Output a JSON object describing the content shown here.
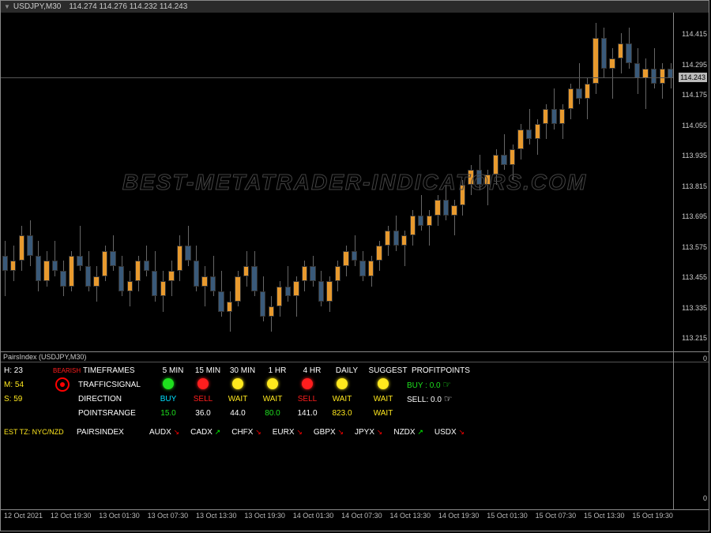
{
  "title": {
    "symbol": "USDJPY,M30",
    "ohlc": "114.274 114.276 114.232 114.243"
  },
  "chart": {
    "background": "#000000",
    "ylim": [
      113.16,
      114.5
    ],
    "yticks": [
      114.415,
      114.295,
      114.243,
      114.175,
      114.055,
      113.935,
      113.815,
      113.695,
      113.575,
      113.455,
      113.335,
      113.215
    ],
    "current_price": 114.243,
    "bar_color_up": "#e89a2e",
    "bar_color_dn": "#3a5a7a",
    "candles": [
      {
        "o": 113.54,
        "h": 113.6,
        "l": 113.38,
        "c": 113.48
      },
      {
        "o": 113.48,
        "h": 113.58,
        "l": 113.44,
        "c": 113.52
      },
      {
        "o": 113.52,
        "h": 113.66,
        "l": 113.48,
        "c": 113.62
      },
      {
        "o": 113.62,
        "h": 113.68,
        "l": 113.5,
        "c": 113.54
      },
      {
        "o": 113.54,
        "h": 113.6,
        "l": 113.4,
        "c": 113.44
      },
      {
        "o": 113.44,
        "h": 113.56,
        "l": 113.42,
        "c": 113.52
      },
      {
        "o": 113.52,
        "h": 113.6,
        "l": 113.46,
        "c": 113.48
      },
      {
        "o": 113.48,
        "h": 113.52,
        "l": 113.38,
        "c": 113.42
      },
      {
        "o": 113.42,
        "h": 113.56,
        "l": 113.4,
        "c": 113.54
      },
      {
        "o": 113.54,
        "h": 113.66,
        "l": 113.48,
        "c": 113.5
      },
      {
        "o": 113.5,
        "h": 113.56,
        "l": 113.4,
        "c": 113.42
      },
      {
        "o": 113.42,
        "h": 113.5,
        "l": 113.36,
        "c": 113.46
      },
      {
        "o": 113.46,
        "h": 113.58,
        "l": 113.44,
        "c": 113.56
      },
      {
        "o": 113.56,
        "h": 113.62,
        "l": 113.48,
        "c": 113.5
      },
      {
        "o": 113.5,
        "h": 113.54,
        "l": 113.38,
        "c": 113.4
      },
      {
        "o": 113.4,
        "h": 113.48,
        "l": 113.34,
        "c": 113.44
      },
      {
        "o": 113.44,
        "h": 113.54,
        "l": 113.4,
        "c": 113.52
      },
      {
        "o": 113.52,
        "h": 113.58,
        "l": 113.46,
        "c": 113.48
      },
      {
        "o": 113.48,
        "h": 113.56,
        "l": 113.36,
        "c": 113.38
      },
      {
        "o": 113.38,
        "h": 113.48,
        "l": 113.32,
        "c": 113.44
      },
      {
        "o": 113.44,
        "h": 113.52,
        "l": 113.38,
        "c": 113.48
      },
      {
        "o": 113.48,
        "h": 113.62,
        "l": 113.44,
        "c": 113.58
      },
      {
        "o": 113.58,
        "h": 113.66,
        "l": 113.5,
        "c": 113.52
      },
      {
        "o": 113.52,
        "h": 113.58,
        "l": 113.4,
        "c": 113.42
      },
      {
        "o": 113.42,
        "h": 113.5,
        "l": 113.34,
        "c": 113.46
      },
      {
        "o": 113.46,
        "h": 113.54,
        "l": 113.38,
        "c": 113.4
      },
      {
        "o": 113.4,
        "h": 113.48,
        "l": 113.3,
        "c": 113.32
      },
      {
        "o": 113.32,
        "h": 113.4,
        "l": 113.24,
        "c": 113.36
      },
      {
        "o": 113.36,
        "h": 113.48,
        "l": 113.34,
        "c": 113.46
      },
      {
        "o": 113.46,
        "h": 113.56,
        "l": 113.42,
        "c": 113.5
      },
      {
        "o": 113.5,
        "h": 113.56,
        "l": 113.38,
        "c": 113.4
      },
      {
        "o": 113.4,
        "h": 113.46,
        "l": 113.28,
        "c": 113.3
      },
      {
        "o": 113.3,
        "h": 113.38,
        "l": 113.24,
        "c": 113.34
      },
      {
        "o": 113.34,
        "h": 113.44,
        "l": 113.3,
        "c": 113.42
      },
      {
        "o": 113.42,
        "h": 113.5,
        "l": 113.36,
        "c": 113.38
      },
      {
        "o": 113.38,
        "h": 113.46,
        "l": 113.3,
        "c": 113.44
      },
      {
        "o": 113.44,
        "h": 113.52,
        "l": 113.4,
        "c": 113.5
      },
      {
        "o": 113.5,
        "h": 113.54,
        "l": 113.42,
        "c": 113.44
      },
      {
        "o": 113.44,
        "h": 113.48,
        "l": 113.34,
        "c": 113.36
      },
      {
        "o": 113.36,
        "h": 113.46,
        "l": 113.32,
        "c": 113.44
      },
      {
        "o": 113.44,
        "h": 113.52,
        "l": 113.4,
        "c": 113.5
      },
      {
        "o": 113.5,
        "h": 113.58,
        "l": 113.46,
        "c": 113.56
      },
      {
        "o": 113.56,
        "h": 113.62,
        "l": 113.5,
        "c": 113.52
      },
      {
        "o": 113.52,
        "h": 113.56,
        "l": 113.44,
        "c": 113.46
      },
      {
        "o": 113.46,
        "h": 113.54,
        "l": 113.42,
        "c": 113.52
      },
      {
        "o": 113.52,
        "h": 113.6,
        "l": 113.48,
        "c": 113.58
      },
      {
        "o": 113.58,
        "h": 113.66,
        "l": 113.54,
        "c": 113.64
      },
      {
        "o": 113.64,
        "h": 113.7,
        "l": 113.56,
        "c": 113.58
      },
      {
        "o": 113.58,
        "h": 113.64,
        "l": 113.5,
        "c": 113.62
      },
      {
        "o": 113.62,
        "h": 113.72,
        "l": 113.58,
        "c": 113.7
      },
      {
        "o": 113.7,
        "h": 113.78,
        "l": 113.64,
        "c": 113.66
      },
      {
        "o": 113.66,
        "h": 113.72,
        "l": 113.58,
        "c": 113.7
      },
      {
        "o": 113.7,
        "h": 113.78,
        "l": 113.66,
        "c": 113.76
      },
      {
        "o": 113.76,
        "h": 113.82,
        "l": 113.68,
        "c": 113.7
      },
      {
        "o": 113.7,
        "h": 113.76,
        "l": 113.62,
        "c": 113.74
      },
      {
        "o": 113.74,
        "h": 113.84,
        "l": 113.7,
        "c": 113.82
      },
      {
        "o": 113.82,
        "h": 113.9,
        "l": 113.78,
        "c": 113.88
      },
      {
        "o": 113.88,
        "h": 113.94,
        "l": 113.8,
        "c": 113.82
      },
      {
        "o": 113.82,
        "h": 113.88,
        "l": 113.74,
        "c": 113.86
      },
      {
        "o": 113.86,
        "h": 113.96,
        "l": 113.82,
        "c": 113.94
      },
      {
        "o": 113.94,
        "h": 114.02,
        "l": 113.88,
        "c": 113.9
      },
      {
        "o": 113.9,
        "h": 113.98,
        "l": 113.84,
        "c": 113.96
      },
      {
        "o": 113.96,
        "h": 114.06,
        "l": 113.92,
        "c": 114.04
      },
      {
        "o": 114.04,
        "h": 114.12,
        "l": 113.98,
        "c": 114.0
      },
      {
        "o": 114.0,
        "h": 114.08,
        "l": 113.94,
        "c": 114.06
      },
      {
        "o": 114.06,
        "h": 114.14,
        "l": 114.0,
        "c": 114.12
      },
      {
        "o": 114.12,
        "h": 114.2,
        "l": 114.04,
        "c": 114.06
      },
      {
        "o": 114.06,
        "h": 114.14,
        "l": 114.0,
        "c": 114.12
      },
      {
        "o": 114.12,
        "h": 114.22,
        "l": 114.08,
        "c": 114.2
      },
      {
        "o": 114.2,
        "h": 114.3,
        "l": 114.14,
        "c": 114.16
      },
      {
        "o": 114.16,
        "h": 114.24,
        "l": 114.08,
        "c": 114.22
      },
      {
        "o": 114.22,
        "h": 114.46,
        "l": 114.18,
        "c": 114.4
      },
      {
        "o": 114.4,
        "h": 114.44,
        "l": 114.24,
        "c": 114.28
      },
      {
        "o": 114.28,
        "h": 114.36,
        "l": 114.16,
        "c": 114.32
      },
      {
        "o": 114.32,
        "h": 114.42,
        "l": 114.26,
        "c": 114.38
      },
      {
        "o": 114.38,
        "h": 114.44,
        "l": 114.28,
        "c": 114.3
      },
      {
        "o": 114.3,
        "h": 114.36,
        "l": 114.18,
        "c": 114.24
      },
      {
        "o": 114.24,
        "h": 114.32,
        "l": 114.12,
        "c": 114.28
      },
      {
        "o": 114.28,
        "h": 114.36,
        "l": 114.2,
        "c": 114.22
      },
      {
        "o": 114.22,
        "h": 114.3,
        "l": 114.16,
        "c": 114.28
      },
      {
        "o": 114.28,
        "h": 114.3,
        "l": 114.2,
        "c": 114.24
      }
    ],
    "watermark": "BEST-METATRADER-INDICATORS.COM"
  },
  "xaxis": [
    "12 Oct 2021",
    "12 Oct 19:30",
    "13 Oct 01:30",
    "13 Oct 07:30",
    "13 Oct 13:30",
    "13 Oct 19:30",
    "14 Oct 01:30",
    "14 Oct 07:30",
    "14 Oct 13:30",
    "14 Oct 19:30",
    "15 Oct 01:30",
    "15 Oct 07:30",
    "15 Oct 13:30",
    "15 Oct 19:30"
  ],
  "indicator": {
    "title": "PairsIndex (USDJPY,M30)",
    "y_label": "0",
    "left": {
      "bearish": "BEARISH",
      "H": "H: 23",
      "M": "M: 54",
      "S": "S: 59",
      "est": "EST TZ:  NYC/NZD"
    },
    "headers": {
      "timeframes": "TIMEFRAMES",
      "trafficsignal": "TRAFFICSIGNAL",
      "direction": "DIRECTION",
      "pointsrange": "POINTSRANGE",
      "pairsindex": "PAIRSINDEX",
      "suggest": "SUGGEST",
      "profitpoints": "PROFITPOINTS"
    },
    "tf_cols": [
      "5 MIN",
      "15 MIN",
      "30 MIN",
      "1 HR",
      "4 HR",
      "DAILY"
    ],
    "signals": [
      {
        "color": "#1ee01e"
      },
      {
        "color": "#ff1e1e"
      },
      {
        "color": "#ffe81e"
      },
      {
        "color": "#ffe81e"
      },
      {
        "color": "#ff1e1e"
      },
      {
        "color": "#ffe81e"
      }
    ],
    "direction": [
      {
        "t": "BUY",
        "c": "#00e0ff"
      },
      {
        "t": "SELL",
        "c": "#ff1e1e"
      },
      {
        "t": "WAIT",
        "c": "#ffe81e"
      },
      {
        "t": "WAIT",
        "c": "#ffe81e"
      },
      {
        "t": "SELL",
        "c": "#ff1e1e"
      },
      {
        "t": "WAIT",
        "c": "#ffe81e"
      }
    ],
    "points": [
      {
        "t": "15.0",
        "c": "#1ee01e"
      },
      {
        "t": "36.0",
        "c": "#fff"
      },
      {
        "t": "44.0",
        "c": "#fff"
      },
      {
        "t": "80.0",
        "c": "#1ee01e"
      },
      {
        "t": "141.0",
        "c": "#fff"
      },
      {
        "t": "823.0",
        "c": "#ffe81e"
      }
    ],
    "suggest_signal_color": "#ffe81e",
    "suggest_direction": {
      "t": "WAIT",
      "c": "#ffe81e"
    },
    "suggest_points": {
      "t": "WAIT",
      "c": "#ffe81e"
    },
    "buy": {
      "label": "BUY :",
      "val": "0.0",
      "c": "#1ee01e"
    },
    "sell": {
      "label": "SELL:",
      "val": "0.0",
      "c": "#fff"
    },
    "pairs": [
      {
        "n": "AUDX",
        "d": "dn"
      },
      {
        "n": "CADX",
        "d": "up"
      },
      {
        "n": "CHFX",
        "d": "dn"
      },
      {
        "n": "EURX",
        "d": "dn"
      },
      {
        "n": "GBPX",
        "d": "dn"
      },
      {
        "n": "JPYX",
        "d": "dn"
      },
      {
        "n": "NZDX",
        "d": "up"
      },
      {
        "n": "USDX",
        "d": "dn"
      }
    ]
  }
}
